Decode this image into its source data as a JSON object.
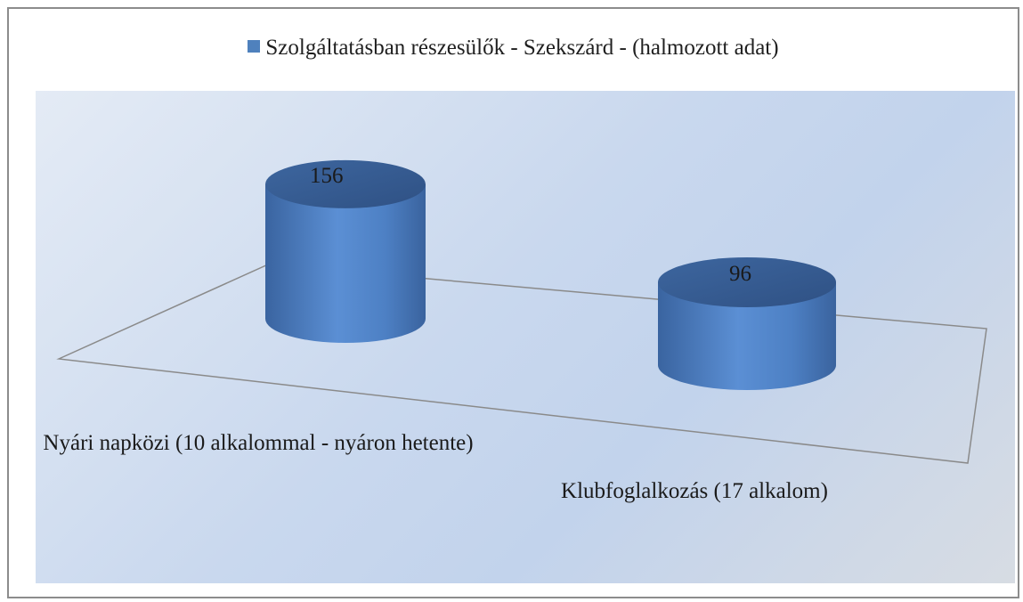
{
  "chart_data": {
    "type": "bar",
    "style": "3d-cylinder",
    "categories": [
      "Nyári napközi (10 alkalommal - nyáron hetente)",
      "Klubfoglalkozás (17 alkalom)"
    ],
    "series": [
      {
        "name": "Szolgáltatásban részesülők  - Szekszárd - (halmozott adat)",
        "values": [
          156,
          96
        ],
        "color": "#4f81bd"
      }
    ],
    "data_labels": [
      "156",
      "96"
    ],
    "legend_position": "top",
    "grid": false,
    "ylim": [
      0,
      160
    ]
  }
}
